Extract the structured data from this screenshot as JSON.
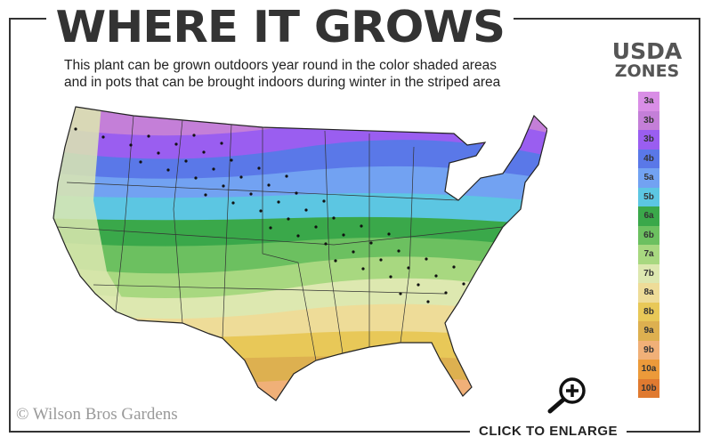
{
  "header": {
    "title": "WHERE IT GROWS",
    "subtitle_line1": "This plant can be grown outdoors year round in the color shaded areas",
    "subtitle_line2": "and in pots that can be brought indoors during winter in the striped area"
  },
  "legend": {
    "title_line1": "USDA",
    "title_line2": "ZONES",
    "zones": [
      {
        "label": "3a",
        "color": "#d98ee6"
      },
      {
        "label": "3b",
        "color": "#c47fd8"
      },
      {
        "label": "3b",
        "color": "#9a5ef0"
      },
      {
        "label": "4b",
        "color": "#5a78e8"
      },
      {
        "label": "5a",
        "color": "#72a2f2"
      },
      {
        "label": "5b",
        "color": "#5cc6e2"
      },
      {
        "label": "6a",
        "color": "#3aa84a"
      },
      {
        "label": "6b",
        "color": "#6cc060"
      },
      {
        "label": "7a",
        "color": "#a8d880"
      },
      {
        "label": "7b",
        "color": "#dde8b0"
      },
      {
        "label": "8a",
        "color": "#eedc98"
      },
      {
        "label": "8b",
        "color": "#e8c858"
      },
      {
        "label": "9a",
        "color": "#ddb050"
      },
      {
        "label": "9b",
        "color": "#f0b078"
      },
      {
        "label": "10a",
        "color": "#ec9a3a"
      },
      {
        "label": "10b",
        "color": "#e07a30"
      }
    ]
  },
  "map": {
    "icon": "us-hardiness-zone-map"
  },
  "watermark": "© Wilson Bros Gardens",
  "cta": {
    "label": "CLICK TO ENLARGE",
    "icon": "magnifier-plus-icon"
  }
}
